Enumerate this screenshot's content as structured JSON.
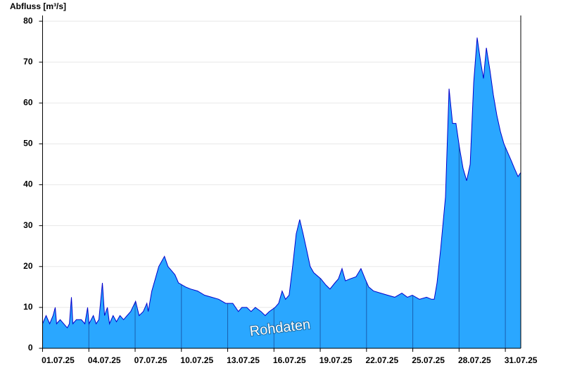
{
  "chart_data": {
    "type": "area",
    "y_axis_label": "Abfluss [m³/s]",
    "annotation": "Rohdaten",
    "x": [
      0,
      0.23,
      0.46,
      0.68,
      0.82,
      0.91,
      1.14,
      1.37,
      1.6,
      1.74,
      1.87,
      1.96,
      2.19,
      2.51,
      2.74,
      2.92,
      3.01,
      3.29,
      3.47,
      3.65,
      3.88,
      4.02,
      4.2,
      4.34,
      4.57,
      4.79,
      5.02,
      5.25,
      5.48,
      5.71,
      6.03,
      6.26,
      6.53,
      6.76,
      6.85,
      7.08,
      7.31,
      7.53,
      7.9,
      8.13,
      8.36,
      8.58,
      8.81,
      9.04,
      9.27,
      9.59,
      10.05,
      10.5,
      10.96,
      11.42,
      11.87,
      12.33,
      12.69,
      12.92,
      13.24,
      13.52,
      13.79,
      14.16,
      14.43,
      14.7,
      15.07,
      15.3,
      15.53,
      15.75,
      15.98,
      16.21,
      16.44,
      16.67,
      16.89,
      17.12,
      17.35,
      17.58,
      18.04,
      18.36,
      18.63,
      18.95,
      19.18,
      19.41,
      19.63,
      19.95,
      20.32,
      20.64,
      20.91,
      21.14,
      21.46,
      21.92,
      22.37,
      22.83,
      23.29,
      23.65,
      23.97,
      24.43,
      24.89,
      25.21,
      25.39,
      25.57,
      25.8,
      26.12,
      26.35,
      26.58,
      26.8,
      27.03,
      27.26,
      27.49,
      27.72,
      27.95,
      28.17,
      28.4,
      28.58,
      28.77,
      29.0,
      29.22,
      29.45,
      29.68,
      29.91,
      30.14,
      30.37,
      30.59,
      30.82,
      31
    ],
    "series": [
      {
        "color": "#2aa7ff",
        "line_color": "#0000cc",
        "values": [
          6,
          8,
          6,
          8,
          10,
          6,
          7,
          6,
          5,
          6,
          12.5,
          6,
          7,
          7,
          6,
          10,
          6,
          8,
          6,
          7,
          16,
          8,
          10,
          6,
          8,
          6.5,
          8,
          7,
          8,
          9,
          11.5,
          8,
          9,
          11,
          9,
          14,
          17,
          20,
          22.5,
          20,
          19,
          18,
          16,
          15.5,
          15,
          14.5,
          14,
          13,
          12.5,
          12,
          11,
          11,
          9,
          10,
          10,
          9,
          10,
          9,
          8,
          9,
          10,
          11,
          14,
          12,
          13,
          20,
          28,
          31.5,
          28,
          24,
          20,
          18.5,
          17,
          15.5,
          14.5,
          16,
          17,
          19.5,
          16.5,
          17,
          17.5,
          19.5,
          17,
          15,
          14,
          13.5,
          13,
          12.5,
          13.5,
          12.5,
          13,
          12,
          12.5,
          12,
          12,
          16,
          24,
          37,
          63.5,
          55,
          55,
          49,
          44,
          41,
          45,
          65,
          76,
          70,
          66,
          73.5,
          68,
          62,
          57,
          53,
          50,
          48,
          46,
          44,
          42,
          43
        ]
      }
    ],
    "xlim": [
      0,
      31
    ],
    "xticks": [
      {
        "value": 0,
        "label": "01.07.25"
      },
      {
        "value": 3,
        "label": "04.07.25"
      },
      {
        "value": 6,
        "label": "07.07.25"
      },
      {
        "value": 9,
        "label": "10.07.25"
      },
      {
        "value": 12,
        "label": "13.07.25"
      },
      {
        "value": 15,
        "label": "16.07.25"
      },
      {
        "value": 18,
        "label": "19.07.25"
      },
      {
        "value": 21,
        "label": "22.07.25"
      },
      {
        "value": 24,
        "label": "25.07.25"
      },
      {
        "value": 27,
        "label": "28.07.25"
      },
      {
        "value": 30,
        "label": "31.07.25"
      }
    ],
    "ylim": [
      0,
      81.4
    ],
    "yticks": [
      0,
      10,
      20,
      30,
      40,
      50,
      60,
      70,
      80
    ],
    "grid": true
  }
}
